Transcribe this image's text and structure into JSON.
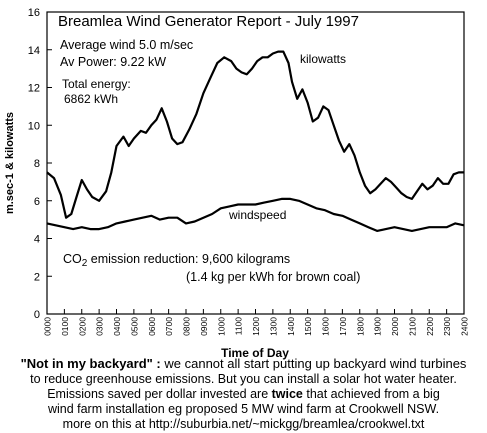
{
  "chart_data": {
    "type": "line",
    "title": "Breamlea Wind Generator Report  -  July 1997",
    "xlabel": "Time of Day",
    "ylabel": "m.sec-1 & kilowatts",
    "ylim": [
      0,
      16
    ],
    "yticks": [
      "0",
      "2",
      "4",
      "6",
      "8",
      "10",
      "12",
      "14",
      "16"
    ],
    "xlim": [
      0,
      2400
    ],
    "xticks": [
      "0000",
      "0100",
      "0200",
      "0300",
      "0400",
      "0500",
      "0600",
      "0700",
      "0800",
      "0900",
      "1000",
      "1100",
      "1200",
      "1300",
      "1400",
      "1500",
      "1600",
      "1700",
      "1800",
      "1900",
      "2000",
      "2100",
      "2200",
      "2300",
      "2400"
    ],
    "grid": false,
    "series": [
      {
        "name": "kilowatts",
        "color": "#000000",
        "x": [
          0,
          40,
          80,
          110,
          140,
          170,
          200,
          230,
          260,
          300,
          340,
          370,
          400,
          440,
          470,
          500,
          540,
          570,
          600,
          630,
          660,
          690,
          720,
          750,
          780,
          820,
          860,
          900,
          940,
          980,
          1020,
          1060,
          1090,
          1120,
          1150,
          1180,
          1210,
          1240,
          1270,
          1300,
          1330,
          1360,
          1390,
          1410,
          1440,
          1470,
          1500,
          1530,
          1560,
          1590,
          1620,
          1650,
          1680,
          1710,
          1740,
          1770,
          1800,
          1830,
          1860,
          1890,
          1920,
          1950,
          1980,
          2010,
          2040,
          2070,
          2100,
          2130,
          2160,
          2190,
          2220,
          2250,
          2280,
          2310,
          2340,
          2370,
          2400
        ],
        "y": [
          7.5,
          7.2,
          6.3,
          5.1,
          5.3,
          6.2,
          7.1,
          6.6,
          6.2,
          6.0,
          6.5,
          7.5,
          8.9,
          9.4,
          8.9,
          9.3,
          9.7,
          9.6,
          10.0,
          10.3,
          10.9,
          10.2,
          9.3,
          9.0,
          9.1,
          9.8,
          10.6,
          11.7,
          12.5,
          13.3,
          13.6,
          13.4,
          13.0,
          12.8,
          12.7,
          13.0,
          13.4,
          13.6,
          13.6,
          13.8,
          13.9,
          13.9,
          13.3,
          12.3,
          11.4,
          11.9,
          11.2,
          10.2,
          10.4,
          11.0,
          10.8,
          10.0,
          9.2,
          8.6,
          9.0,
          8.4,
          7.5,
          6.8,
          6.4,
          6.6,
          6.9,
          7.2,
          7.0,
          6.7,
          6.4,
          6.2,
          6.1,
          6.5,
          6.9,
          6.6,
          6.8,
          7.2,
          6.9,
          6.9,
          7.4,
          7.5,
          7.5
        ]
      },
      {
        "name": "windspeed",
        "color": "#000000",
        "x": [
          0,
          50,
          100,
          150,
          200,
          250,
          300,
          350,
          400,
          450,
          500,
          550,
          600,
          650,
          700,
          750,
          800,
          850,
          900,
          950,
          1000,
          1050,
          1100,
          1150,
          1200,
          1250,
          1300,
          1350,
          1400,
          1450,
          1500,
          1550,
          1600,
          1650,
          1700,
          1750,
          1800,
          1850,
          1900,
          1950,
          2000,
          2050,
          2100,
          2150,
          2200,
          2250,
          2300,
          2350,
          2400
        ],
        "y": [
          4.8,
          4.7,
          4.6,
          4.5,
          4.6,
          4.5,
          4.5,
          4.6,
          4.8,
          4.9,
          5.0,
          5.1,
          5.2,
          5.0,
          5.1,
          5.1,
          4.8,
          4.9,
          5.1,
          5.3,
          5.6,
          5.7,
          5.8,
          5.8,
          5.8,
          5.9,
          6.0,
          6.1,
          6.1,
          6.0,
          5.8,
          5.6,
          5.5,
          5.3,
          5.2,
          5.0,
          4.8,
          4.6,
          4.4,
          4.5,
          4.6,
          4.5,
          4.4,
          4.5,
          4.6,
          4.6,
          4.6,
          4.8,
          4.7
        ]
      }
    ],
    "annotations": {
      "avg_wind": "Average wind 5.0 m/sec",
      "av_power": "Av Power: 9.22 kW",
      "total_energy_label": "Total  energy:",
      "total_energy_value": "6862 kWh",
      "kilowatts_label": "kilowatts",
      "windspeed_label": "windspeed",
      "co2_prefix": "CO",
      "co2_sub": "2",
      "co2_text": " emission reduction:   9,600 kilograms",
      "co2_note": "(1.4 kg per kWh for brown coal)"
    }
  },
  "caption": {
    "line1_bold": "\"Not in my backyard\" :",
    "line1_rest": " we cannot all start putting up backyard wind turbines",
    "line2": "to reduce greenhouse emissions. But you can install a solar hot water heater.",
    "line3_pre": "Emissions saved per dollar invested are ",
    "line3_bold": "twice",
    "line3_post": " that achieved from a big",
    "line4": "wind farm installation eg proposed 5 MW wind farm at Crookwell NSW.",
    "line5": "more on this at http://suburbia.net/~mickgg/breamlea/crookwel.txt"
  }
}
